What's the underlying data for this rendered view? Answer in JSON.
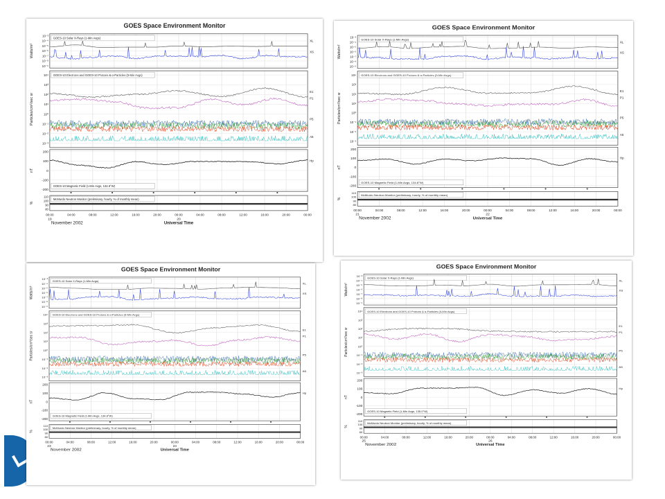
{
  "chart_data": [
    {
      "type": "line",
      "title": "GOES Space Environment Monitor",
      "subplot_labels": [
        "GOES-10 Solar X-Rays (1-Min Avgs)",
        "GOES-10 Electrons and GOES-10 Protons & α-Particles (5-Min Avgs)",
        "GOES-10 Magnetic Field (1-Min Avgs, 134.8°W)",
        "McMurdo Neutron Monitor (preliminary, hourly, % of monthly mean)"
      ],
      "ylabels": [
        "Watts/m²",
        "Particles/cm²/sec sr",
        "nT",
        "%"
      ],
      "xlabel": "Universal Time",
      "date_label": "November 2002",
      "x_ticks": [
        "00:00",
        "04:00",
        "08:00",
        "12:00",
        "16:00",
        "20:00",
        "00:00",
        "04:00",
        "08:00",
        "12:00",
        "16:00",
        "20:00",
        "00:00"
      ],
      "day_labels": [
        "19",
        "20"
      ],
      "xray_ticks": [
        "10⁻³",
        "10⁻⁴",
        "10⁻⁵",
        "10⁻⁶",
        "10⁻⁷",
        "10⁻⁸",
        "10⁻⁹"
      ],
      "particle_ticks": [
        "10⁴",
        "10³",
        "10²",
        "10¹",
        "10⁰",
        "10⁻¹",
        "10⁻²",
        "10⁻³"
      ],
      "hp_ticks": [
        "200",
        "100",
        "0",
        "-100",
        "-200"
      ],
      "neutron_ticks": [
        "110",
        "100",
        "90",
        "80"
      ],
      "series_labels": [
        "XL",
        "XS",
        "E1",
        "P1",
        "P5",
        "A5",
        "Hp"
      ]
    },
    {
      "type": "line",
      "title": "GOES Space Environment Monitor",
      "subplot_labels": [
        "GOES-10 Solar X-Rays (1-Min Avgs)",
        "GOES-10 Electrons and GOES-10 Protons & α-Particles (5-Min Avgs)",
        "GOES-10 Magnetic Field (1-Min Avgs, 134.8°W)",
        "McMurdo Neutron Monitor (preliminary, hourly, % of monthly mean)"
      ],
      "ylabels": [
        "Watts/m²",
        "Particles/cm²/sec sr",
        "nT",
        "%"
      ],
      "xlabel": "Universal Time",
      "date_label": "November 2002",
      "x_ticks": [
        "00:00",
        "04:00",
        "08:00",
        "12:00",
        "16:00",
        "20:00",
        "00:00",
        "04:00",
        "08:00",
        "12:00",
        "16:00",
        "20:00",
        "00:00"
      ],
      "day_labels": [
        "21",
        "22"
      ],
      "xray_ticks": [
        "10⁻³",
        "10⁻⁴",
        "10⁻⁵",
        "10⁻⁶",
        "10⁻⁷",
        "10⁻⁸",
        "10⁻⁹"
      ],
      "particle_ticks": [
        "10⁴",
        "10³",
        "10²",
        "10¹",
        "10⁰",
        "10⁻¹",
        "10⁻²",
        "10⁻³"
      ],
      "hp_ticks": [
        "200",
        "100",
        "0",
        "-100",
        "-200"
      ],
      "neutron_ticks": [
        "110",
        "100",
        "90",
        "80"
      ],
      "series_labels": [
        "XL",
        "XS",
        "E1",
        "P1",
        "P5",
        "A5",
        "Hp"
      ]
    },
    {
      "type": "line",
      "title": "GOES Space Environment Monitor",
      "subplot_labels": [
        "GOES-10 Solar X-Rays (1-Min Avgs)",
        "GOES-10 Electrons and GOES-10 Protons & α-Particles (5-Min Avgs)",
        "GOES-10 Magnetic Field (1-Min Avgs, 134.8°W)",
        "McMurdo Neutron Monitor (preliminary, hourly, % of monthly mean)"
      ],
      "ylabels": [
        "Watts/m²",
        "Particles/cm²/sec sr",
        "nT",
        "%"
      ],
      "xlabel": "Universal Time",
      "date_label": "November 2002",
      "x_ticks": [
        "00:00",
        "04:00",
        "08:00",
        "12:00",
        "16:00",
        "20:00",
        "00:00",
        "04:00",
        "08:00",
        "12:00",
        "16:00",
        "20:00",
        "00:00"
      ],
      "day_labels": [
        "23",
        "24"
      ],
      "xray_ticks": [
        "10⁻³",
        "10⁻⁴",
        "10⁻⁵",
        "10⁻⁶",
        "10⁻⁷",
        "10⁻⁸",
        "10⁻⁹"
      ],
      "particle_ticks": [
        "10⁴",
        "10³",
        "10²",
        "10¹",
        "10⁰",
        "10⁻¹",
        "10⁻²",
        "10⁻³"
      ],
      "hp_ticks": [
        "200",
        "100",
        "0",
        "-100",
        "-200"
      ],
      "neutron_ticks": [
        "110",
        "100",
        "90",
        "80"
      ],
      "series_labels": [
        "XL",
        "XS",
        "E1",
        "P1",
        "P5",
        "A5",
        "Hp"
      ]
    },
    {
      "type": "line",
      "title": "GOES Space Environment Monitor",
      "subplot_labels": [
        "GOES-10 Solar X-Rays (1-Min Avgs)",
        "GOES-10 Electrons and GOES-10 Protons & α-Particles (5-Min Avgs)",
        "GOES-10 Magnetic Field (1-Min Avgs, 135.0°W)",
        "McMurdo Neutron Monitor (preliminary, hourly, % of monthly mean)"
      ],
      "ylabels": [
        "Watts/m²",
        "Particles/cm²/sec sr",
        "nT",
        "%"
      ],
      "xlabel": "Universal Time",
      "date_label": "November 2002",
      "x_ticks": [
        "00:00",
        "04:00",
        "08:00",
        "12:00",
        "16:00",
        "20:00",
        "00:00",
        "04:00",
        "08:00",
        "12:00",
        "16:00",
        "20:00",
        "00:00"
      ],
      "day_labels": [
        "25",
        "26"
      ],
      "xray_ticks": [
        "10⁻³",
        "10⁻⁴",
        "10⁻⁵",
        "10⁻⁶",
        "10⁻⁷",
        "10⁻⁸",
        "10⁻⁹"
      ],
      "particle_ticks": [
        "10⁴",
        "10³",
        "10²",
        "10¹",
        "10⁰",
        "10⁻¹",
        "10⁻²",
        "10⁻³"
      ],
      "hp_ticks": [
        "200",
        "100",
        "0",
        "-100",
        "-200"
      ],
      "neutron_ticks": [
        "110",
        "100",
        "90",
        "80"
      ],
      "series_labels": [
        "XL",
        "XS",
        "E1",
        "P1",
        "P5",
        "A5",
        "Hp"
      ]
    }
  ],
  "colors": {
    "xl": "#4d4d4d",
    "xs": "#3344dd",
    "e1": "#555555",
    "p1": "#c060c0",
    "p5_green": "#3a9a3a",
    "p5_red": "#e0401a",
    "p5_blue": "#3c6fb0",
    "a5": "#33bbbb",
    "hp": "#222222",
    "neutron": "#333333",
    "grid": "#dcdcdc",
    "axis": "#555555"
  }
}
